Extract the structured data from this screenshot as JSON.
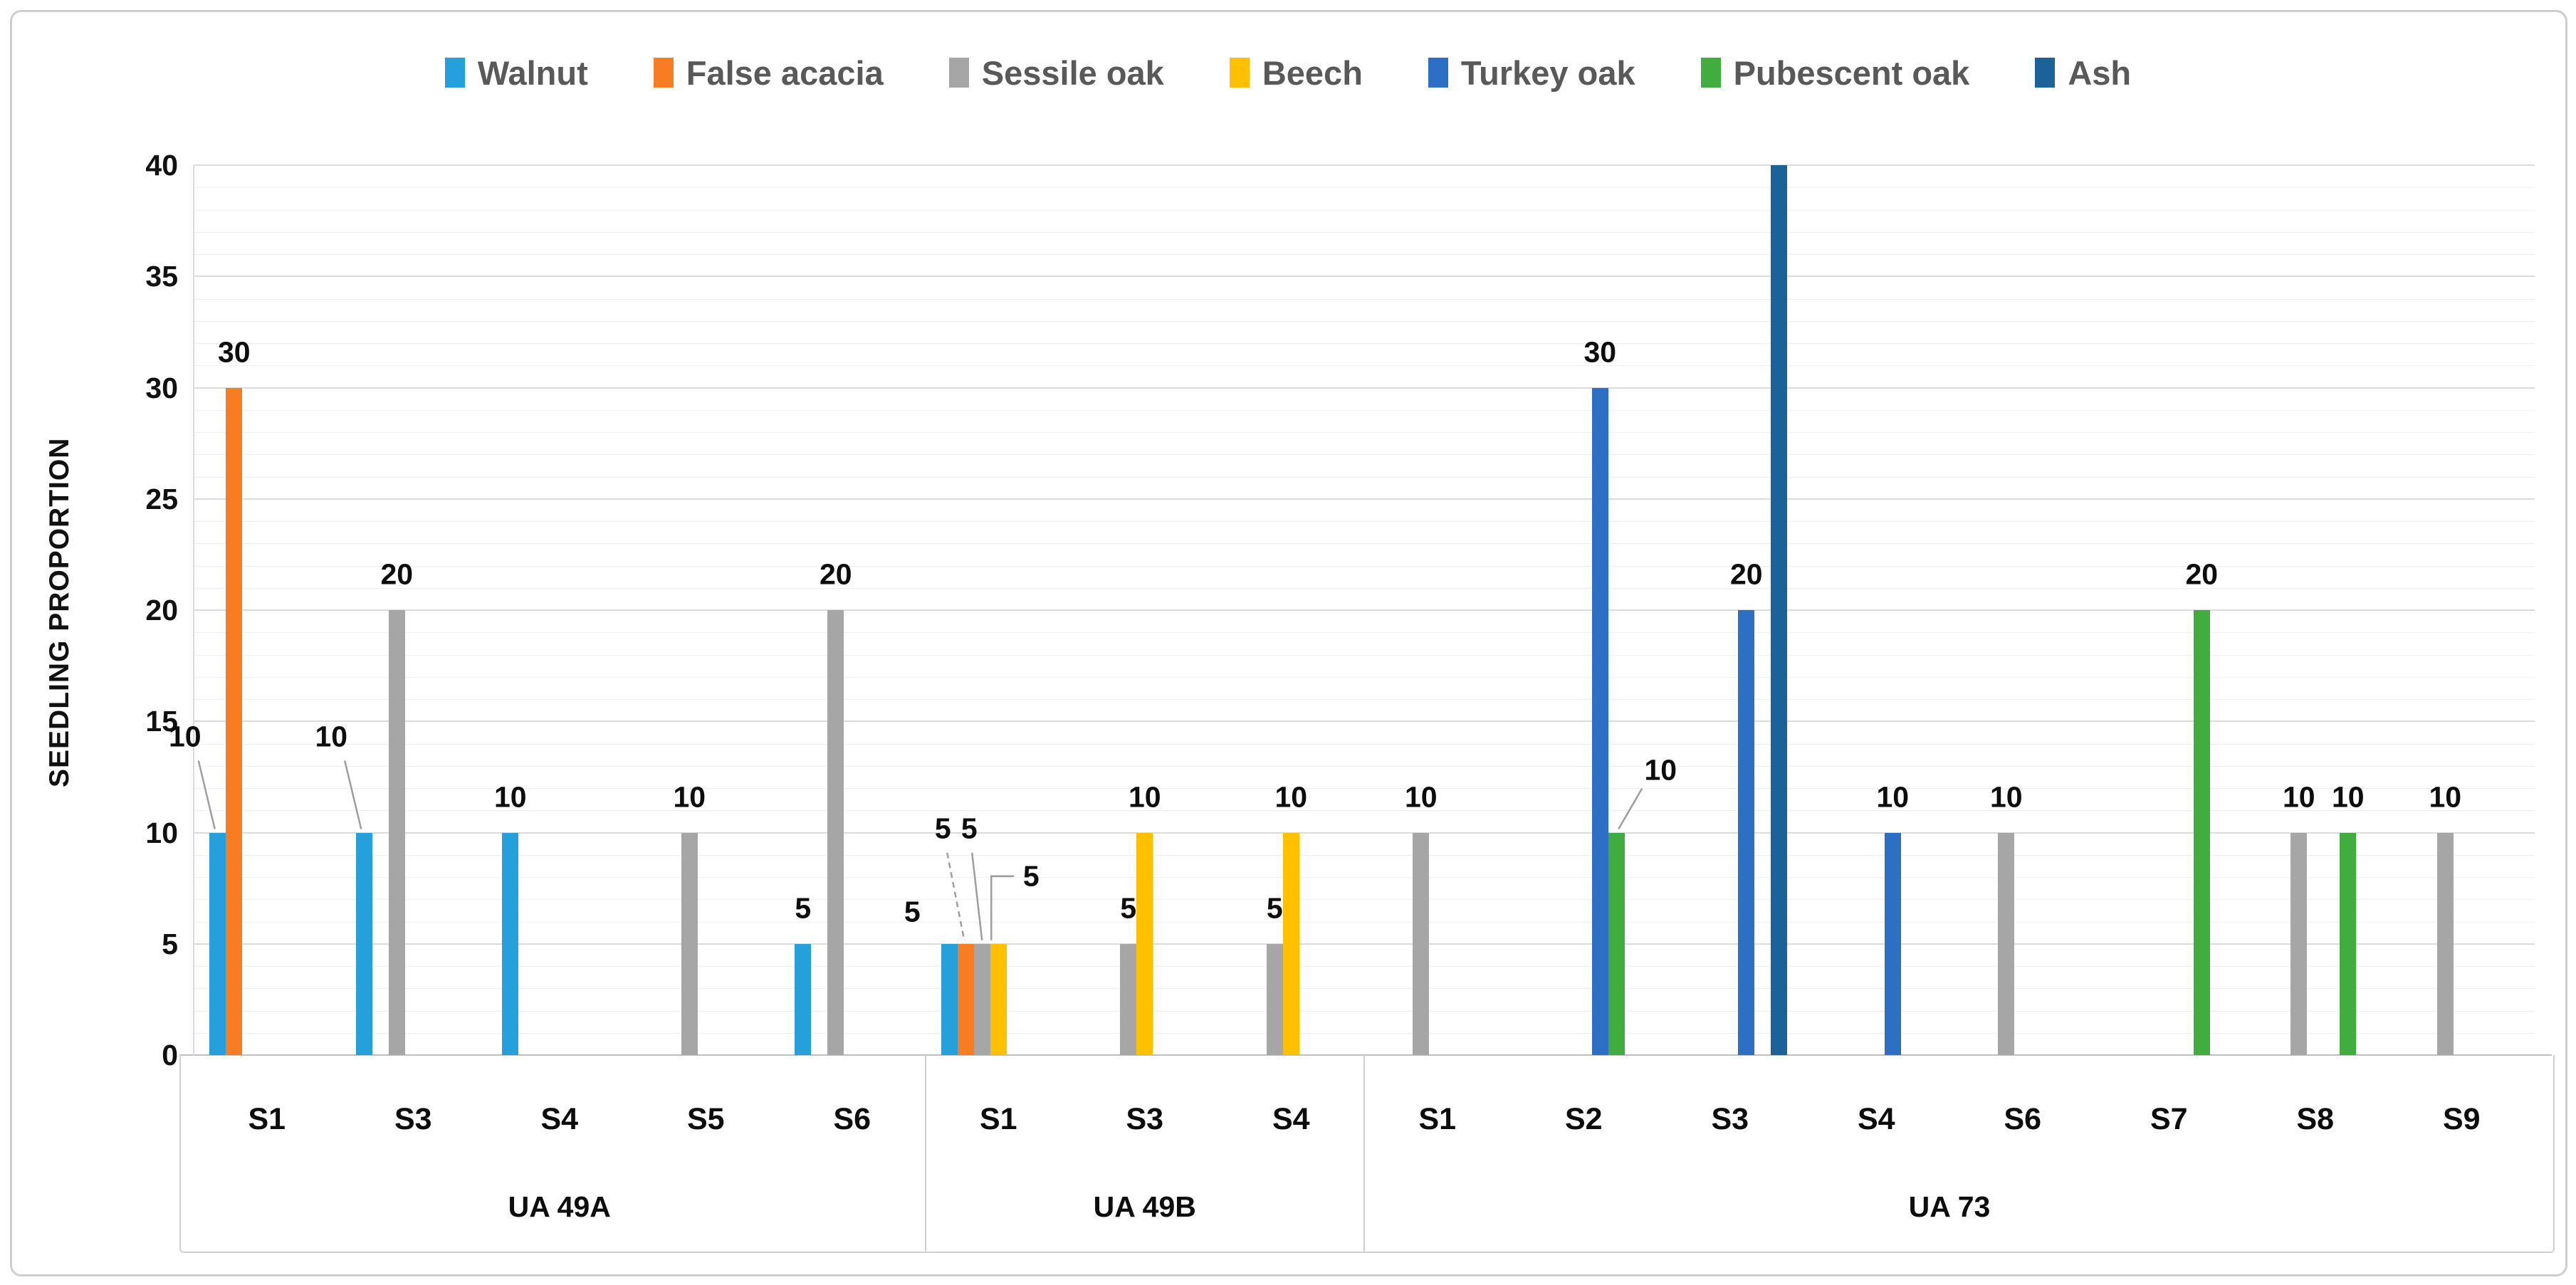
{
  "figure": {
    "background": "#ffffff",
    "border_color": "#cfcfcf"
  },
  "legend": {
    "position": "top",
    "items": [
      {
        "label": "Walnut",
        "color": "#26A0DA"
      },
      {
        "label": "False acacia",
        "color": "#F87C21"
      },
      {
        "label": "Sessile oak",
        "color": "#A6A6A6"
      },
      {
        "label": "Beech",
        "color": "#FFC000"
      },
      {
        "label": "Turkey oak",
        "color": "#2C6FC5"
      },
      {
        "label": "Pubescent oak",
        "color": "#41AD41"
      },
      {
        "label": "Ash",
        "color": "#1B6298"
      }
    ]
  },
  "chart_data": {
    "type": "bar",
    "title": "",
    "xlabel": "",
    "ylabel": "SEEDLING PROPORTION",
    "ylim": [
      0,
      40
    ],
    "y_major_ticks": [
      0,
      5,
      10,
      15,
      20,
      25,
      30,
      35,
      40
    ],
    "y_minor_unit": 1,
    "grid": "horizontal",
    "legend_position": "top",
    "series_order": [
      "Walnut",
      "False acacia",
      "Sessile oak",
      "Beech",
      "Turkey oak",
      "Pubescent oak",
      "Ash"
    ],
    "groups": [
      {
        "label": "UA 49A",
        "categories": [
          {
            "label": "S1",
            "bars": [
              {
                "series": "Walnut",
                "value": 10,
                "label_pos": "callout-left"
              },
              {
                "series": "False acacia",
                "value": 30,
                "label_pos": "above"
              }
            ]
          },
          {
            "label": "S3",
            "bars": [
              {
                "series": "Walnut",
                "value": 10,
                "label_pos": "callout-left"
              },
              {
                "series": "Sessile oak",
                "value": 20,
                "label_pos": "above"
              }
            ]
          },
          {
            "label": "S4",
            "bars": [
              {
                "series": "Walnut",
                "value": 10,
                "label_pos": "above"
              }
            ]
          },
          {
            "label": "S5",
            "bars": [
              {
                "series": "Sessile oak",
                "value": 10,
                "label_pos": "above"
              }
            ]
          },
          {
            "label": "S6",
            "bars": [
              {
                "series": "Walnut",
                "value": 5,
                "label_pos": "above"
              },
              {
                "series": "Sessile oak",
                "value": 20,
                "label_pos": "above"
              }
            ]
          }
        ]
      },
      {
        "label": "UA 49B",
        "categories": [
          {
            "label": "S1",
            "bars": [
              {
                "series": "Walnut",
                "value": 5,
                "label_pos": "left"
              },
              {
                "series": "False acacia",
                "value": 5,
                "label_pos": "callout-above-left"
              },
              {
                "series": "Sessile oak",
                "value": 5,
                "label_pos": "callout-above"
              },
              {
                "series": "Beech",
                "value": 5,
                "label_pos": "callout-right-elbow"
              }
            ]
          },
          {
            "label": "S3",
            "bars": [
              {
                "series": "Sessile oak",
                "value": 5,
                "label_pos": "above"
              },
              {
                "series": "Beech",
                "value": 10,
                "label_pos": "above"
              }
            ]
          },
          {
            "label": "S4",
            "bars": [
              {
                "series": "Sessile oak",
                "value": 5,
                "label_pos": "above"
              },
              {
                "series": "Beech",
                "value": 10,
                "label_pos": "above"
              }
            ]
          }
        ]
      },
      {
        "label": "UA 73",
        "categories": [
          {
            "label": "S1",
            "bars": [
              {
                "series": "Sessile oak",
                "value": 10,
                "label_pos": "above"
              }
            ]
          },
          {
            "label": "S2",
            "bars": [
              {
                "series": "Turkey oak",
                "value": 30,
                "label_pos": "above"
              },
              {
                "series": "Pubescent oak",
                "value": 10,
                "label_pos": "callout-right"
              }
            ]
          },
          {
            "label": "S3",
            "bars": [
              {
                "series": "Turkey oak",
                "value": 20,
                "label_pos": "above"
              },
              {
                "series": "Ash",
                "value": 40,
                "label_pos": "none"
              }
            ]
          },
          {
            "label": "S4",
            "bars": [
              {
                "series": "Turkey oak",
                "value": 10,
                "label_pos": "above"
              }
            ]
          },
          {
            "label": "S6",
            "bars": [
              {
                "series": "Sessile oak",
                "value": 10,
                "label_pos": "above"
              }
            ]
          },
          {
            "label": "S7",
            "bars": [
              {
                "series": "Pubescent oak",
                "value": 20,
                "label_pos": "above"
              }
            ]
          },
          {
            "label": "S8",
            "bars": [
              {
                "series": "Sessile oak",
                "value": 10,
                "label_pos": "above"
              },
              {
                "series": "Pubescent oak",
                "value": 10,
                "label_pos": "above"
              }
            ]
          },
          {
            "label": "S9",
            "bars": [
              {
                "series": "Sessile oak",
                "value": 10,
                "label_pos": "above"
              }
            ]
          }
        ]
      }
    ]
  }
}
